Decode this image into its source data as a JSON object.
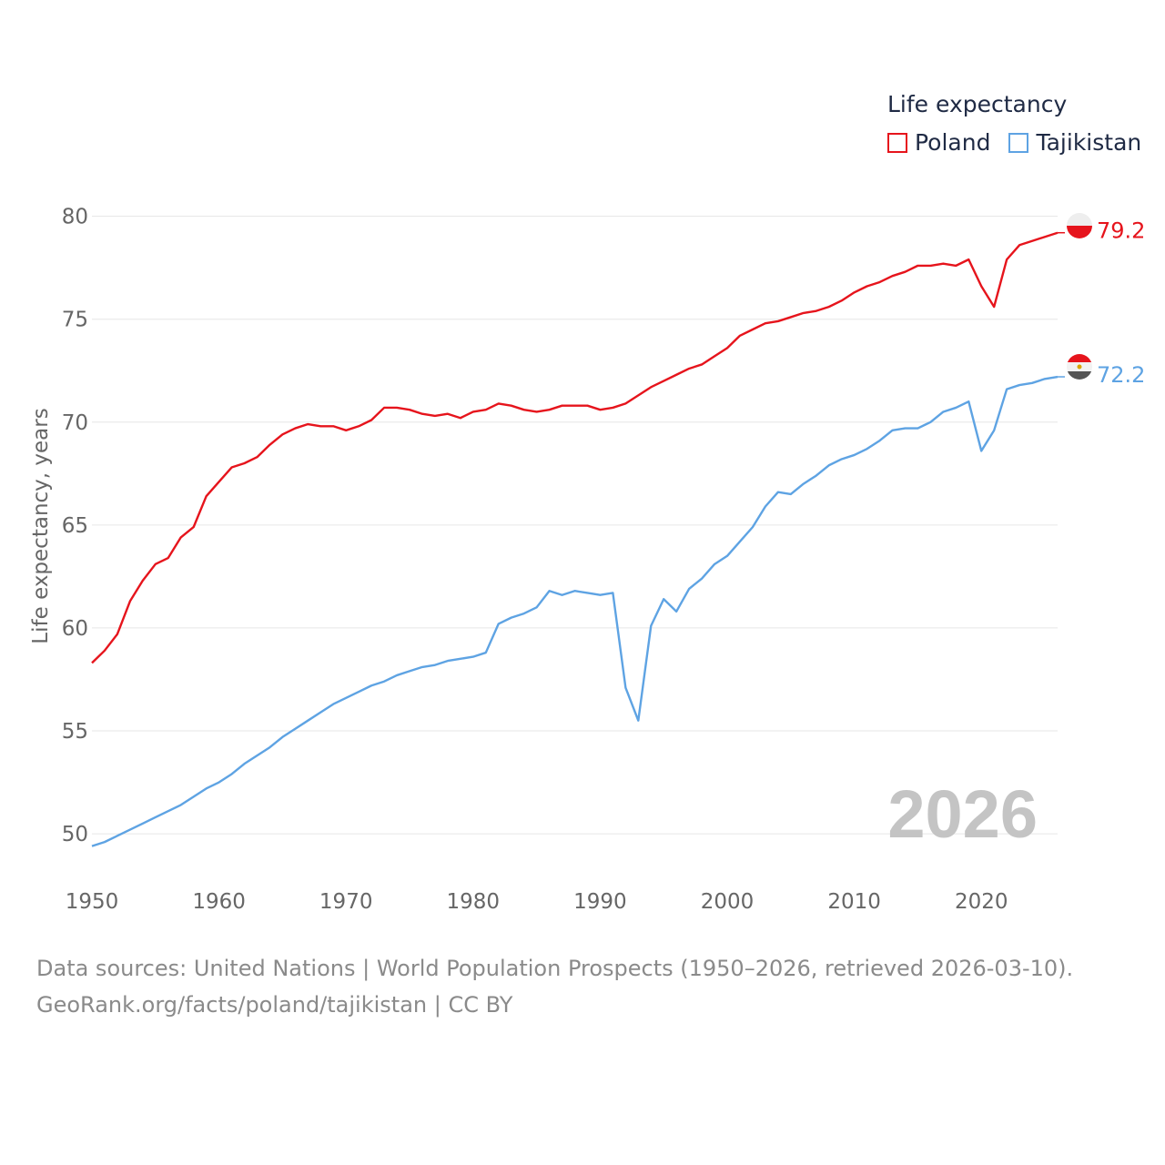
{
  "legend": {
    "title": "Life expectancy",
    "items": [
      {
        "name": "Poland",
        "color": "#e6141c"
      },
      {
        "name": "Tajikistan",
        "color": "#5ea3e3"
      }
    ]
  },
  "footer": {
    "line1": "Data sources: United Nations | World Population Prospects (1950–2026, retrieved 2026-03-10).",
    "line2": "GeoRank.org/facts/poland/tajikistan | CC BY"
  },
  "chart_data": {
    "type": "line",
    "title": "",
    "xlabel": "",
    "ylabel": "Life expectancy, years",
    "year_watermark": "2026",
    "xlim": [
      1950,
      2026
    ],
    "ylim": [
      48.5,
      81
    ],
    "x_ticks": [
      1950,
      1960,
      1970,
      1980,
      1990,
      2000,
      2010,
      2020
    ],
    "y_ticks": [
      50,
      55,
      60,
      65,
      70,
      75,
      80
    ],
    "grid": true,
    "x": [
      1950,
      1951,
      1952,
      1953,
      1954,
      1955,
      1956,
      1957,
      1958,
      1959,
      1960,
      1961,
      1962,
      1963,
      1964,
      1965,
      1966,
      1967,
      1968,
      1969,
      1970,
      1971,
      1972,
      1973,
      1974,
      1975,
      1976,
      1977,
      1978,
      1979,
      1980,
      1981,
      1982,
      1983,
      1984,
      1985,
      1986,
      1987,
      1988,
      1989,
      1990,
      1991,
      1992,
      1993,
      1994,
      1995,
      1996,
      1997,
      1998,
      1999,
      2000,
      2001,
      2002,
      2003,
      2004,
      2005,
      2006,
      2007,
      2008,
      2009,
      2010,
      2011,
      2012,
      2013,
      2014,
      2015,
      2016,
      2017,
      2018,
      2019,
      2020,
      2021,
      2022,
      2023,
      2024,
      2025,
      2026
    ],
    "series": [
      {
        "name": "Poland",
        "color": "#e6141c",
        "end_label": "79.2",
        "values": [
          58.3,
          58.9,
          59.7,
          61.3,
          62.3,
          63.1,
          63.4,
          64.4,
          64.9,
          66.4,
          67.1,
          67.8,
          68.0,
          68.3,
          68.9,
          69.4,
          69.7,
          69.9,
          69.8,
          69.8,
          69.6,
          69.8,
          70.1,
          70.7,
          70.7,
          70.6,
          70.4,
          70.3,
          70.4,
          70.2,
          70.5,
          70.6,
          70.9,
          70.8,
          70.6,
          70.5,
          70.6,
          70.8,
          70.8,
          70.8,
          70.6,
          70.7,
          70.9,
          71.3,
          71.7,
          72.0,
          72.3,
          72.6,
          72.8,
          73.2,
          73.6,
          74.2,
          74.5,
          74.8,
          74.9,
          75.1,
          75.3,
          75.4,
          75.6,
          75.9,
          76.3,
          76.6,
          76.8,
          77.1,
          77.3,
          77.6,
          77.6,
          77.7,
          77.6,
          77.9,
          76.6,
          75.6,
          77.9,
          78.6,
          78.8,
          79.0,
          79.2
        ]
      },
      {
        "name": "Tajikistan",
        "color": "#5ea3e3",
        "end_label": "72.2",
        "values": [
          49.4,
          49.6,
          49.9,
          50.2,
          50.5,
          50.8,
          51.1,
          51.4,
          51.8,
          52.2,
          52.5,
          52.9,
          53.4,
          53.8,
          54.2,
          54.7,
          55.1,
          55.5,
          55.9,
          56.3,
          56.6,
          56.9,
          57.2,
          57.4,
          57.7,
          57.9,
          58.1,
          58.2,
          58.4,
          58.5,
          58.6,
          58.8,
          60.2,
          60.5,
          60.7,
          61.0,
          61.8,
          61.6,
          61.8,
          61.7,
          61.6,
          61.7,
          57.1,
          55.5,
          60.1,
          61.4,
          60.8,
          61.9,
          62.4,
          63.1,
          63.5,
          64.2,
          64.9,
          65.9,
          66.6,
          66.5,
          67.0,
          67.4,
          67.9,
          68.2,
          68.4,
          68.7,
          69.1,
          69.6,
          69.7,
          69.7,
          70.0,
          70.5,
          70.7,
          71.0,
          68.6,
          69.6,
          71.6,
          71.8,
          71.9,
          72.1,
          72.2
        ]
      }
    ]
  }
}
